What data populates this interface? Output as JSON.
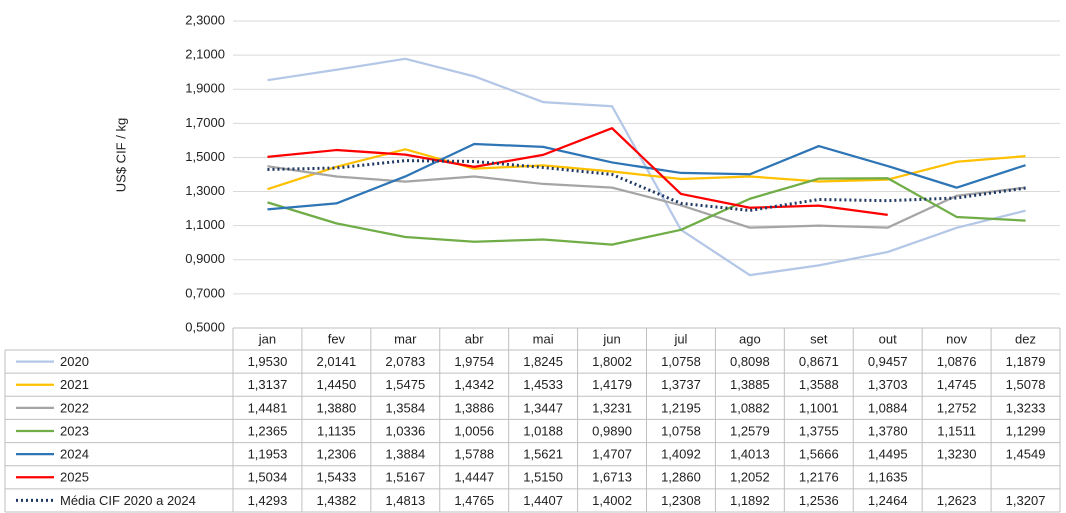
{
  "chart_data": {
    "type": "line",
    "ylabel": "US$ CIF / kg",
    "categories": [
      "jan",
      "fev",
      "mar",
      "abr",
      "mai",
      "jun",
      "jul",
      "ago",
      "set",
      "out",
      "nov",
      "dez"
    ],
    "ylim": [
      0.5,
      2.3
    ],
    "yticks": [
      {
        "value": 0.5,
        "label": "0,5000"
      },
      {
        "value": 0.7,
        "label": "0,7000"
      },
      {
        "value": 0.9,
        "label": "0,9000"
      },
      {
        "value": 1.1,
        "label": "1,1000"
      },
      {
        "value": 1.3,
        "label": "1,3000"
      },
      {
        "value": 1.5,
        "label": "1,5000"
      },
      {
        "value": 1.7,
        "label": "1,7000"
      },
      {
        "value": 1.9,
        "label": "1,9000"
      },
      {
        "value": 2.1,
        "label": "2,1000"
      },
      {
        "value": 2.3,
        "label": "2,3000"
      }
    ],
    "grid": true,
    "series": [
      {
        "name": "2020",
        "color": "#b4c7e7",
        "style": "solid",
        "values": [
          1.953,
          2.0141,
          2.0783,
          1.9754,
          1.8245,
          1.8002,
          1.0758,
          0.8098,
          0.8671,
          0.9457,
          1.0876,
          1.1879
        ],
        "value_labels": [
          "1,9530",
          "2,0141",
          "2,0783",
          "1,9754",
          "1,8245",
          "1,8002",
          "1,0758",
          "0,8098",
          "0,8671",
          "0,9457",
          "1,0876",
          "1,1879"
        ]
      },
      {
        "name": "2021",
        "color": "#ffc000",
        "style": "solid",
        "values": [
          1.3137,
          1.445,
          1.5475,
          1.4342,
          1.4533,
          1.4179,
          1.3737,
          1.3885,
          1.3588,
          1.3703,
          1.4745,
          1.5078
        ],
        "value_labels": [
          "1,3137",
          "1,4450",
          "1,5475",
          "1,4342",
          "1,4533",
          "1,4179",
          "1,3737",
          "1,3885",
          "1,3588",
          "1,3703",
          "1,4745",
          "1,5078"
        ]
      },
      {
        "name": "2022",
        "color": "#a5a5a5",
        "style": "solid",
        "values": [
          1.4481,
          1.388,
          1.3584,
          1.3886,
          1.3447,
          1.3231,
          1.2195,
          1.0882,
          1.1001,
          1.0884,
          1.2752,
          1.3233
        ],
        "value_labels": [
          "1,4481",
          "1,3880",
          "1,3584",
          "1,3886",
          "1,3447",
          "1,3231",
          "1,2195",
          "1,0882",
          "1,1001",
          "1,0884",
          "1,2752",
          "1,3233"
        ]
      },
      {
        "name": "2023",
        "color": "#70ad47",
        "style": "solid",
        "values": [
          1.2365,
          1.1135,
          1.0336,
          1.0056,
          1.0188,
          0.989,
          1.0758,
          1.2579,
          1.3755,
          1.378,
          1.1511,
          1.1299
        ],
        "value_labels": [
          "1,2365",
          "1,1135",
          "1,0336",
          "1,0056",
          "1,0188",
          "0,9890",
          "1,0758",
          "1,2579",
          "1,3755",
          "1,3780",
          "1,1511",
          "1,1299"
        ]
      },
      {
        "name": "2024",
        "color": "#2e75b6",
        "style": "solid",
        "values": [
          1.1953,
          1.2306,
          1.3884,
          1.5788,
          1.5621,
          1.4707,
          1.4092,
          1.4013,
          1.5666,
          1.4495,
          1.323,
          1.4549
        ],
        "value_labels": [
          "1,1953",
          "1,2306",
          "1,3884",
          "1,5788",
          "1,5621",
          "1,4707",
          "1,4092",
          "1,4013",
          "1,5666",
          "1,4495",
          "1,3230",
          "1,4549"
        ]
      },
      {
        "name": "2025",
        "color": "#ff0000",
        "style": "solid",
        "values": [
          1.5034,
          1.5433,
          1.5167,
          1.4447,
          1.515,
          1.6713,
          1.286,
          1.2052,
          1.2176,
          1.1635,
          null,
          null
        ],
        "value_labels": [
          "1,5034",
          "1,5433",
          "1,5167",
          "1,4447",
          "1,5150",
          "1,6713",
          "1,2860",
          "1,2052",
          "1,2176",
          "1,1635",
          null,
          null
        ]
      },
      {
        "name": "Média CIF 2020 a 2024",
        "color": "#1f3864",
        "style": "dotted",
        "values": [
          1.4293,
          1.4382,
          1.4813,
          1.4765,
          1.4407,
          1.4002,
          1.2308,
          1.1892,
          1.2536,
          1.2464,
          1.2623,
          1.3207
        ],
        "value_labels": [
          "1,4293",
          "1,4382",
          "1,4813",
          "1,4765",
          "1,4407",
          "1,4002",
          "1,2308",
          "1,1892",
          "1,2536",
          "1,2464",
          "1,2623",
          "1,3207"
        ]
      }
    ]
  }
}
